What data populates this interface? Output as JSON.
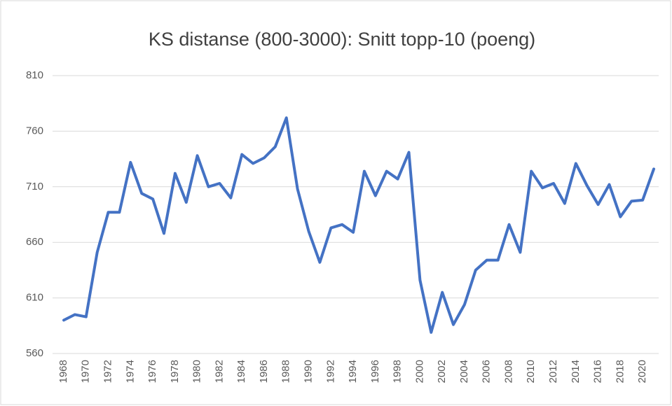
{
  "chart_data": {
    "type": "line",
    "title": "KS distanse (800-3000): Snitt topp-10 (poeng)",
    "categories": [
      "1968",
      null,
      "1970",
      null,
      "1972",
      null,
      "1974",
      null,
      "1976",
      null,
      "1978",
      null,
      "1980",
      null,
      "1982",
      null,
      "1984",
      null,
      "1986",
      null,
      "1988",
      null,
      "1990",
      null,
      "1992",
      null,
      "1994",
      null,
      "1996",
      null,
      "1998",
      null,
      "2000",
      null,
      "2002",
      null,
      "2004",
      null,
      "2006",
      null,
      "2008",
      null,
      "2010",
      null,
      "2012",
      null,
      "2014",
      null,
      "2016",
      null,
      "2018",
      null,
      "2020",
      null
    ],
    "series": [
      {
        "name": "Snitt topp-10",
        "color": "#4472c4",
        "values": [
          590,
          595,
          593,
          651,
          687,
          687,
          732,
          704,
          699,
          668,
          722,
          696,
          738,
          710,
          713,
          700,
          739,
          731,
          736,
          746,
          772,
          708,
          670,
          642,
          673,
          676,
          669,
          724,
          702,
          724,
          717,
          741,
          626,
          579,
          615,
          586,
          604,
          635,
          644,
          644,
          676,
          651,
          724,
          709,
          713,
          695,
          731,
          711,
          694,
          712,
          683,
          697,
          698,
          726
        ]
      }
    ],
    "ylim": [
      560,
      810
    ],
    "yticks": [
      560,
      610,
      660,
      710,
      760,
      810
    ],
    "grid": true
  }
}
